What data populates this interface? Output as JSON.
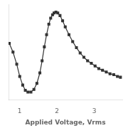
{
  "chart_data": {
    "type": "line",
    "xlabel": "Applied Voltage, Vrms",
    "x": [
      0.72,
      0.82,
      0.92,
      1.0,
      1.08,
      1.15,
      1.22,
      1.3,
      1.38,
      1.46,
      1.54,
      1.6,
      1.66,
      1.72,
      1.78,
      1.83,
      1.88,
      1.92,
      1.97,
      2.02,
      2.08,
      2.15,
      2.22,
      2.32,
      2.42,
      2.52,
      2.62,
      2.72,
      2.82,
      2.92,
      3.02,
      3.12,
      3.22,
      3.32,
      3.42,
      3.52,
      3.62,
      3.7
    ],
    "values": [
      0.6,
      0.5,
      0.36,
      0.22,
      0.12,
      0.06,
      0.04,
      0.04,
      0.07,
      0.14,
      0.26,
      0.4,
      0.56,
      0.7,
      0.82,
      0.89,
      0.93,
      0.95,
      0.96,
      0.95,
      0.92,
      0.86,
      0.79,
      0.7,
      0.62,
      0.55,
      0.49,
      0.44,
      0.4,
      0.37,
      0.34,
      0.31,
      0.29,
      0.27,
      0.25,
      0.24,
      0.22,
      0.21
    ],
    "color": "#333333",
    "marker": "square",
    "xlim": [
      0.7,
      3.75
    ],
    "xticks": [
      1,
      2,
      3
    ],
    "ylim": [
      -0.05,
      1.05
    ],
    "yticks": [],
    "tick_labels": "x",
    "grid": false
  }
}
